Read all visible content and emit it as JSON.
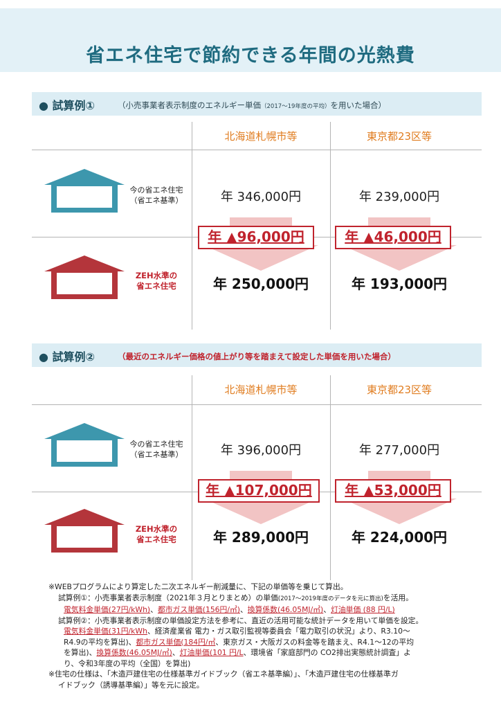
{
  "title": "省エネ住宅で節約できる年間の光熱費",
  "case1": {
    "heading": "● 試算例①",
    "condition_pre": "（小売事業者表示制度のエネルギー単価",
    "condition_small": "（2017～19年度の平均）",
    "condition_post": "を用いた場合）",
    "regions": [
      "北海道札幌市等",
      "東京都23区等"
    ],
    "row_current": [
      "今の省エネ住宅",
      "（省エネ基準）"
    ],
    "row_zeh": [
      "ZEH水準の",
      "省エネ住宅"
    ],
    "current_costs": [
      "年 346,000円",
      "年 239,000円"
    ],
    "savings": [
      "年 ▲96,000円",
      "年 ▲46,000円"
    ],
    "zeh_costs": [
      "年 250,000円",
      "年 193,000円"
    ]
  },
  "case2": {
    "heading": "● 試算例②",
    "condition": "（最近のエネルギー価格の値上がり等を踏まえて設定した単価を用いた場合）",
    "regions": [
      "北海道札幌市等",
      "東京都23区等"
    ],
    "row_current": [
      "今の省エネ住宅",
      "（省エネ基準）"
    ],
    "row_zeh": [
      "ZEH水準の",
      "省エネ住宅"
    ],
    "current_costs": [
      "年 396,000円",
      "年 277,000円"
    ],
    "savings": [
      "年 ▲107,000円",
      "年 ▲53,000円"
    ],
    "zeh_costs": [
      "年 289,000円",
      "年 224,000円"
    ]
  },
  "notes": {
    "line1": "※WEBプログラムにより算定した二次エネルギー削減量に、下記の単価等を乗じて算出。",
    "ex1_a": "試算例①：小売事業者表示制度（2021年３月とりまとめ）の単価",
    "ex1_small": "(2017～2019年度のデータを元に算出)",
    "ex1_b": "を活用。",
    "ex1_units": [
      "電気料金単価(27円/kWh)",
      "都市ガス単価(156円/㎥)",
      "換算係数(46.05MJ/㎥)",
      "灯油単価 (88 円/L)"
    ],
    "ex2_a": "試算例②：小売事業者表示制度の単価設定方法を参考に、直近の活用可能な統計データを用いて単価を設定。",
    "ex2_elec": "電気料金単価(31円/kWh",
    "ex2_elec_rest": "、経済産業省 電力・ガス取引監視等委員会「電力取引の状況」より、R3.10～",
    "ex2_line3_pre": "R4.9の平均を算出)、",
    "ex2_gas": "都市ガス単価(184円/㎥",
    "ex2_line3_post": "、東京ガス・大阪ガスの料金等を踏まえ、R4.1～12の平均",
    "ex2_line4_pre": "を算出)、",
    "ex2_conv": "換算係数(46.05MJ/㎥)",
    "ex2_sep": "、",
    "ex2_kerosene": "灯油単価(101 円/L",
    "ex2_line4_post": "、環境省「家庭部門の CO2排出実態統計調査」よ",
    "ex2_line5": "り、令和3年度の平均（全国）を算出)",
    "line_spec1": "※住宅の仕様は、「木造戸建住宅の仕様基準ガイドブック（省エネ基準編）」、「木造戸建住宅の仕様基準ガ",
    "line_spec2": "イドブック（誘導基準編）」等を元に設定。"
  },
  "colors": {
    "title": "#1f6b80",
    "house_current": "#3d97ad",
    "house_zeh": "#b4353b",
    "accent_red": "#c0232d",
    "region_orange": "#e07c1f",
    "arrow": "#f2c4c4"
  }
}
